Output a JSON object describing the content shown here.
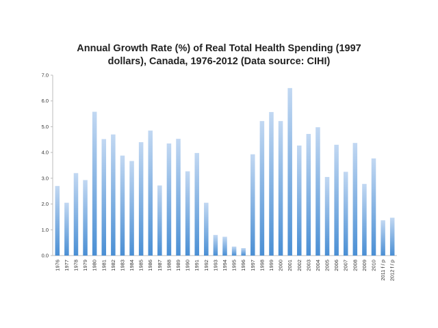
{
  "chart_data": {
    "type": "bar",
    "title_lines": [
      "Annual Growth Rate (%) of Real Total Health Spending (1997",
      "dollars), Canada, 1976-2012 (Data source: CIHI)"
    ],
    "categories": [
      "1976",
      "1977",
      "1978",
      "1979",
      "1980",
      "1981",
      "1982",
      "1983",
      "1984",
      "1985",
      "1986",
      "1987",
      "1988",
      "1989",
      "1990",
      "1991",
      "1992",
      "1993",
      "1994",
      "1995",
      "1996",
      "1997",
      "1998",
      "1999",
      "2000",
      "2001",
      "2002",
      "2003",
      "2004",
      "2005",
      "2006",
      "2007",
      "2008",
      "2009",
      "2010",
      "2011 f / p",
      "2012 f / p"
    ],
    "values": [
      2.7,
      2.05,
      3.2,
      2.93,
      5.58,
      4.52,
      4.7,
      3.88,
      3.67,
      4.4,
      4.85,
      2.72,
      4.35,
      4.53,
      3.27,
      3.98,
      2.05,
      0.8,
      0.73,
      0.35,
      0.29,
      3.93,
      5.22,
      5.57,
      5.22,
      6.5,
      4.27,
      4.72,
      4.98,
      3.05,
      4.3,
      3.25,
      4.37,
      2.78,
      3.77,
      1.37,
      1.47
    ],
    "yticks": [
      "0.0",
      "1.0",
      "2.0",
      "3.0",
      "4.0",
      "5.0",
      "6.0",
      "7.0"
    ],
    "ylim": [
      0,
      7
    ],
    "xlabel": "",
    "ylabel": "",
    "grid": false,
    "colors": {
      "bar_top": "#c2d8f2",
      "bar_bottom": "#4a8fd4",
      "axis": "#bbbbbb"
    }
  }
}
